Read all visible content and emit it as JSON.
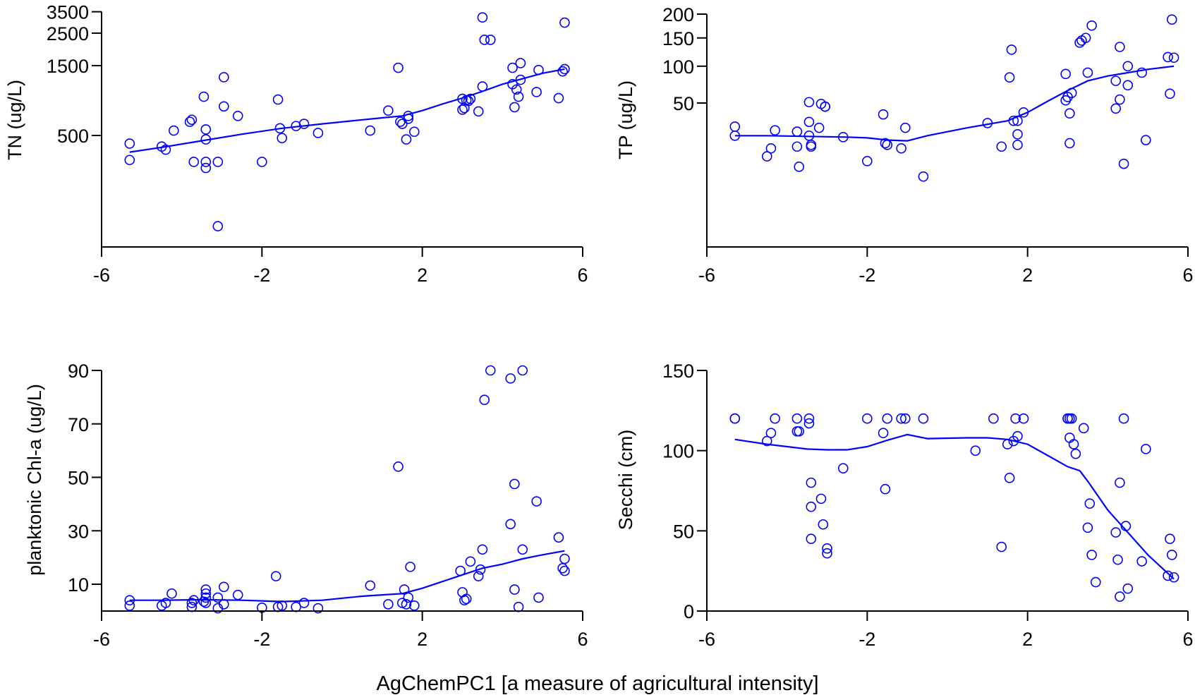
{
  "figure": {
    "shared_xlabel": "AgChemPC1 [a measure of agricultural intensity]",
    "point_color": "#0000ff",
    "line_color": "#0000ff"
  },
  "chart_data": [
    {
      "type": "scatter",
      "ylabel": "TN (ug/L)",
      "xlabel": "",
      "xlim": [
        -6,
        6
      ],
      "x_ticks": [
        -6,
        -2,
        2,
        6
      ],
      "x_tick_labels": [
        "-6",
        "-2",
        "2",
        "6"
      ],
      "yscale": "log",
      "ylim": [
        90,
        4000
      ],
      "y_ticks": [
        500,
        1500,
        2500,
        3500
      ],
      "y_tick_labels": [
        "500",
        "1500",
        "2500",
        "3500"
      ],
      "grid": false,
      "points": [
        [
          -5.3,
          440
        ],
        [
          -5.3,
          340
        ],
        [
          -4.5,
          420
        ],
        [
          -4.4,
          400
        ],
        [
          -4.2,
          540
        ],
        [
          -3.8,
          620
        ],
        [
          -3.75,
          640
        ],
        [
          -3.7,
          330
        ],
        [
          -3.45,
          920
        ],
        [
          -3.4,
          330
        ],
        [
          -3.4,
          300
        ],
        [
          -3.4,
          550
        ],
        [
          -3.4,
          470
        ],
        [
          -3.1,
          330
        ],
        [
          -3.1,
          120
        ],
        [
          -2.95,
          1250
        ],
        [
          -2.95,
          790
        ],
        [
          -2.6,
          680
        ],
        [
          -2.0,
          330
        ],
        [
          -1.6,
          880
        ],
        [
          -1.55,
          560
        ],
        [
          -1.5,
          480
        ],
        [
          -1.15,
          580
        ],
        [
          -0.95,
          600
        ],
        [
          -0.6,
          520
        ],
        [
          0.7,
          540
        ],
        [
          1.15,
          740
        ],
        [
          1.4,
          1450
        ],
        [
          1.45,
          620
        ],
        [
          1.5,
          600
        ],
        [
          1.6,
          470
        ],
        [
          1.65,
          650
        ],
        [
          1.65,
          680
        ],
        [
          1.8,
          530
        ],
        [
          3.0,
          890
        ],
        [
          3.0,
          750
        ],
        [
          3.05,
          770
        ],
        [
          3.1,
          870
        ],
        [
          3.15,
          860
        ],
        [
          3.2,
          890
        ],
        [
          3.4,
          730
        ],
        [
          3.5,
          3200
        ],
        [
          3.5,
          1080
        ],
        [
          3.55,
          2250
        ],
        [
          3.7,
          2250
        ],
        [
          4.25,
          1450
        ],
        [
          4.25,
          1120
        ],
        [
          4.3,
          780
        ],
        [
          4.35,
          1030
        ],
        [
          4.4,
          920
        ],
        [
          4.45,
          1200
        ],
        [
          4.45,
          1560
        ],
        [
          4.85,
          990
        ],
        [
          4.9,
          1400
        ],
        [
          5.4,
          900
        ],
        [
          5.5,
          1370
        ],
        [
          5.55,
          2950
        ],
        [
          5.55,
          1420
        ]
      ],
      "fit_line": [
        [
          -5.3,
          385
        ],
        [
          -4.5,
          415
        ],
        [
          -3.5,
          460
        ],
        [
          -2.5,
          510
        ],
        [
          -1.5,
          560
        ],
        [
          -0.5,
          600
        ],
        [
          0.5,
          640
        ],
        [
          1.0,
          660
        ],
        [
          1.5,
          680
        ],
        [
          2.0,
          740
        ],
        [
          2.5,
          820
        ],
        [
          3.0,
          900
        ],
        [
          3.5,
          1000
        ],
        [
          4.0,
          1120
        ],
        [
          4.5,
          1220
        ],
        [
          5.0,
          1330
        ],
        [
          5.55,
          1420
        ]
      ]
    },
    {
      "type": "scatter",
      "ylabel": "TP (ug/L)",
      "xlabel": "",
      "xlim": [
        -6,
        6
      ],
      "x_ticks": [
        -6,
        -2,
        2,
        6
      ],
      "x_tick_labels": [
        "-6",
        "-2",
        "2",
        "6"
      ],
      "yscale": "sqrt",
      "ylim": [
        0,
        220
      ],
      "y_ticks": [
        50,
        100,
        150,
        200
      ],
      "y_tick_labels": [
        "50",
        "100",
        "150",
        "200"
      ],
      "grid": false,
      "points": [
        [
          -5.3,
          27
        ],
        [
          -5.3,
          20
        ],
        [
          -4.5,
          8
        ],
        [
          -4.4,
          12
        ],
        [
          -4.3,
          24
        ],
        [
          -3.75,
          23
        ],
        [
          -3.75,
          13
        ],
        [
          -3.7,
          4
        ],
        [
          -3.45,
          51
        ],
        [
          -3.45,
          31
        ],
        [
          -3.45,
          20
        ],
        [
          -3.4,
          14
        ],
        [
          -3.4,
          13
        ],
        [
          -3.2,
          26
        ],
        [
          -3.15,
          49
        ],
        [
          -3.05,
          46
        ],
        [
          -3.05,
          46
        ],
        [
          -2.6,
          19
        ],
        [
          -2.0,
          6
        ],
        [
          -1.6,
          38
        ],
        [
          -1.55,
          15
        ],
        [
          -1.5,
          14
        ],
        [
          -1.15,
          12
        ],
        [
          -1.05,
          26
        ],
        [
          -0.6,
          1.5
        ],
        [
          1.0,
          30
        ],
        [
          1.35,
          13
        ],
        [
          1.55,
          83
        ],
        [
          1.6,
          128
        ],
        [
          1.65,
          32
        ],
        [
          1.75,
          14
        ],
        [
          1.75,
          21
        ],
        [
          1.75,
          32
        ],
        [
          1.9,
          40
        ],
        [
          2.95,
          88
        ],
        [
          2.95,
          53
        ],
        [
          3.0,
          57
        ],
        [
          3.05,
          39
        ],
        [
          3.05,
          15
        ],
        [
          3.1,
          62
        ],
        [
          3.3,
          141
        ],
        [
          3.35,
          145
        ],
        [
          3.45,
          150
        ],
        [
          3.5,
          90
        ],
        [
          3.6,
          175
        ],
        [
          4.2,
          44
        ],
        [
          4.2,
          78
        ],
        [
          4.3,
          133
        ],
        [
          4.3,
          54
        ],
        [
          4.4,
          5
        ],
        [
          4.5,
          72
        ],
        [
          4.5,
          100
        ],
        [
          4.85,
          90
        ],
        [
          4.95,
          17
        ],
        [
          5.5,
          115
        ],
        [
          5.55,
          61
        ],
        [
          5.6,
          188
        ],
        [
          5.65,
          114
        ]
      ],
      "fit_line": [
        [
          -5.3,
          20
        ],
        [
          -4.5,
          20
        ],
        [
          -3.5,
          19.5
        ],
        [
          -2.5,
          19
        ],
        [
          -2.0,
          18.5
        ],
        [
          -1.5,
          17
        ],
        [
          -1.0,
          16.5
        ],
        [
          -0.5,
          20
        ],
        [
          0.5,
          26
        ],
        [
          1.5,
          32
        ],
        [
          2.0,
          40
        ],
        [
          2.5,
          52
        ],
        [
          3.0,
          65
        ],
        [
          3.5,
          78
        ],
        [
          4.0,
          85
        ],
        [
          4.5,
          90
        ],
        [
          5.0,
          95
        ],
        [
          5.65,
          100
        ]
      ]
    },
    {
      "type": "scatter",
      "ylabel": "planktonic Chl-a (ug/L)",
      "xlabel": "",
      "xlim": [
        -6,
        6
      ],
      "x_ticks": [
        -6,
        -2,
        2,
        6
      ],
      "x_tick_labels": [
        "-6",
        "-2",
        "2",
        "6"
      ],
      "yscale": "linear",
      "ylim": [
        0,
        92
      ],
      "y_ticks": [
        10,
        30,
        50,
        70,
        90
      ],
      "y_tick_labels": [
        "10",
        "30",
        "50",
        "70",
        "90"
      ],
      "grid": false,
      "points": [
        [
          -5.3,
          2
        ],
        [
          -5.3,
          4
        ],
        [
          -4.5,
          2
        ],
        [
          -4.4,
          3
        ],
        [
          -4.25,
          6.5
        ],
        [
          -3.75,
          3
        ],
        [
          -3.75,
          1.5
        ],
        [
          -3.7,
          4
        ],
        [
          -3.45,
          3.5
        ],
        [
          -3.4,
          8
        ],
        [
          -3.4,
          6.5
        ],
        [
          -3.4,
          5
        ],
        [
          -3.4,
          3
        ],
        [
          -3.1,
          5
        ],
        [
          -3.1,
          1
        ],
        [
          -2.95,
          9
        ],
        [
          -2.95,
          2.5
        ],
        [
          -2.6,
          6
        ],
        [
          -2.0,
          1.2
        ],
        [
          -1.65,
          13
        ],
        [
          -1.6,
          1.5
        ],
        [
          -1.5,
          2
        ],
        [
          -1.15,
          1.5
        ],
        [
          -0.95,
          3
        ],
        [
          -0.6,
          1
        ],
        [
          0.7,
          9.5
        ],
        [
          1.15,
          2.5
        ],
        [
          1.4,
          54
        ],
        [
          1.5,
          3
        ],
        [
          1.55,
          8
        ],
        [
          1.6,
          2.5
        ],
        [
          1.65,
          5
        ],
        [
          1.7,
          16.5
        ],
        [
          1.8,
          2
        ],
        [
          2.95,
          15
        ],
        [
          3.0,
          7
        ],
        [
          3.05,
          4
        ],
        [
          3.1,
          4.5
        ],
        [
          3.2,
          18.5
        ],
        [
          3.4,
          13
        ],
        [
          3.45,
          15.5
        ],
        [
          3.5,
          23
        ],
        [
          3.55,
          79
        ],
        [
          3.7,
          90
        ],
        [
          4.2,
          32.5
        ],
        [
          4.2,
          87
        ],
        [
          4.3,
          47.5
        ],
        [
          4.3,
          8
        ],
        [
          4.4,
          1.5
        ],
        [
          4.5,
          23
        ],
        [
          4.5,
          90
        ],
        [
          4.85,
          41
        ],
        [
          4.9,
          5
        ],
        [
          5.4,
          27.5
        ],
        [
          5.5,
          16
        ],
        [
          5.55,
          19.5
        ],
        [
          5.55,
          15
        ]
      ],
      "fit_line": [
        [
          -5.3,
          4
        ],
        [
          -4.5,
          4
        ],
        [
          -3.5,
          4.2
        ],
        [
          -2.5,
          4
        ],
        [
          -1.5,
          3.5
        ],
        [
          -0.5,
          4
        ],
        [
          0.5,
          5.5
        ],
        [
          1.0,
          6
        ],
        [
          1.5,
          6.5
        ],
        [
          2.0,
          8.5
        ],
        [
          2.5,
          11
        ],
        [
          3.0,
          13.5
        ],
        [
          3.5,
          16
        ],
        [
          4.0,
          17.5
        ],
        [
          4.5,
          19.5
        ],
        [
          5.0,
          21
        ],
        [
          5.55,
          22.5
        ]
      ]
    },
    {
      "type": "scatter",
      "ylabel": "Secchi (cm)",
      "xlabel": "",
      "xlim": [
        -6,
        6
      ],
      "x_ticks": [
        -6,
        -2,
        2,
        6
      ],
      "x_tick_labels": [
        "-6",
        "-2",
        "2",
        "6"
      ],
      "yscale": "linear",
      "ylim": [
        0,
        150
      ],
      "y_ticks": [
        0,
        50,
        100,
        150
      ],
      "y_tick_labels": [
        "0",
        "50",
        "100",
        "150"
      ],
      "grid": false,
      "points": [
        [
          -5.3,
          120
        ],
        [
          -5.3,
          120
        ],
        [
          -4.5,
          106
        ],
        [
          -4.4,
          111
        ],
        [
          -4.3,
          120
        ],
        [
          -3.75,
          120
        ],
        [
          -3.75,
          112
        ],
        [
          -3.7,
          112
        ],
        [
          -3.45,
          120
        ],
        [
          -3.45,
          117
        ],
        [
          -3.4,
          80
        ],
        [
          -3.4,
          65
        ],
        [
          -3.4,
          45
        ],
        [
          -3.15,
          70
        ],
        [
          -3.1,
          54
        ],
        [
          -3.0,
          39
        ],
        [
          -3.0,
          36
        ],
        [
          -2.6,
          89
        ],
        [
          -2.0,
          120
        ],
        [
          -1.6,
          111
        ],
        [
          -1.55,
          76
        ],
        [
          -1.5,
          120
        ],
        [
          -1.15,
          120
        ],
        [
          -1.05,
          120
        ],
        [
          -0.6,
          120
        ],
        [
          0.7,
          100
        ],
        [
          1.15,
          120
        ],
        [
          1.35,
          40
        ],
        [
          1.5,
          104
        ],
        [
          1.55,
          83
        ],
        [
          1.65,
          106
        ],
        [
          1.7,
          120
        ],
        [
          1.75,
          109
        ],
        [
          1.9,
          120
        ],
        [
          3.0,
          120
        ],
        [
          3.0,
          120
        ],
        [
          3.05,
          120
        ],
        [
          3.05,
          108
        ],
        [
          3.1,
          120
        ],
        [
          3.15,
          104
        ],
        [
          3.2,
          98
        ],
        [
          3.4,
          114
        ],
        [
          3.5,
          52
        ],
        [
          3.55,
          67
        ],
        [
          3.6,
          35
        ],
        [
          3.7,
          18
        ],
        [
          4.2,
          49
        ],
        [
          4.25,
          32
        ],
        [
          4.3,
          9
        ],
        [
          4.3,
          80
        ],
        [
          4.4,
          120
        ],
        [
          4.45,
          53
        ],
        [
          4.5,
          14
        ],
        [
          4.85,
          31
        ],
        [
          4.95,
          101
        ],
        [
          5.5,
          22
        ],
        [
          5.55,
          45
        ],
        [
          5.6,
          35
        ],
        [
          5.65,
          21
        ]
      ],
      "fit_line": [
        [
          -5.3,
          107
        ],
        [
          -4.5,
          104
        ],
        [
          -3.5,
          101
        ],
        [
          -3.0,
          100.5
        ],
        [
          -2.5,
          100.5
        ],
        [
          -2.0,
          102.5
        ],
        [
          -1.5,
          106.5
        ],
        [
          -1.0,
          110
        ],
        [
          -0.5,
          107.5
        ],
        [
          0.5,
          108
        ],
        [
          1.0,
          108
        ],
        [
          1.5,
          107
        ],
        [
          2.0,
          104
        ],
        [
          2.5,
          97
        ],
        [
          3.0,
          90
        ],
        [
          3.3,
          87.5
        ],
        [
          3.5,
          81
        ],
        [
          4.0,
          63
        ],
        [
          4.5,
          49
        ],
        [
          5.0,
          35
        ],
        [
          5.65,
          20
        ]
      ]
    }
  ]
}
